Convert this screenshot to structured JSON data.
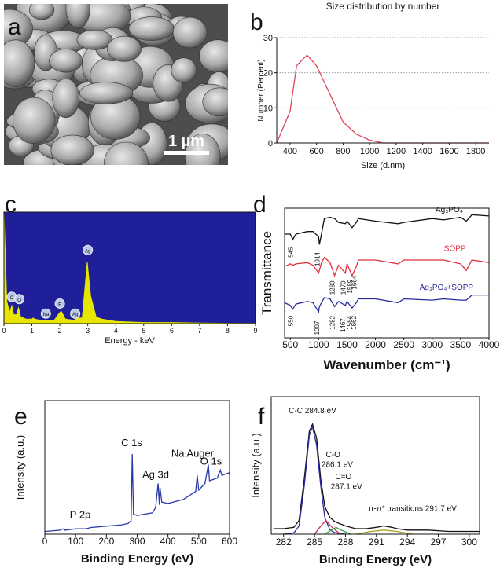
{
  "chart_data": [
    {
      "type": "image",
      "panel_label": "a",
      "scale_bar": "1 µm"
    },
    {
      "type": "line",
      "panel_label": "b",
      "title": "Size distribution by number",
      "xlabel": "Size (d.nm)",
      "ylabel": "Number (Percent)",
      "xlim": [
        300,
        1900
      ],
      "ylim": [
        0,
        30
      ],
      "xticks": [
        400,
        600,
        800,
        1000,
        1200,
        1400,
        1600,
        1800
      ],
      "yticks": [
        0,
        10,
        20,
        30
      ],
      "grid": true,
      "x": [
        300,
        400,
        450,
        500,
        530,
        600,
        700,
        800,
        900,
        1000,
        1100,
        1200,
        1400,
        1600,
        1800,
        1900
      ],
      "series": [
        {
          "color": "#e0455a",
          "values": [
            0,
            9,
            22,
            24,
            25,
            22,
            14,
            6,
            2.5,
            0.8,
            0,
            0,
            0,
            0,
            0,
            0
          ]
        }
      ]
    },
    {
      "type": "area",
      "panel_label": "c",
      "xlabel": "Energy - keV",
      "xlim": [
        0,
        9
      ],
      "ylim": [
        0,
        100
      ],
      "xticks": [
        0,
        1,
        2,
        3,
        4,
        5,
        6,
        7,
        8,
        9
      ],
      "plot_background": "#1f1f9a",
      "x": [
        0,
        0.1,
        0.2,
        0.28,
        0.35,
        0.45,
        0.52,
        0.6,
        0.8,
        1.0,
        1.04,
        1.1,
        1.3,
        1.5,
        1.6,
        1.8,
        2.0,
        2.05,
        2.2,
        2.5,
        2.65,
        2.8,
        2.98,
        3.1,
        3.15,
        3.3,
        3.5,
        4,
        5,
        6,
        7,
        8,
        9
      ],
      "series": [
        {
          "color": "#e6e600",
          "values": [
            100,
            20,
            10,
            16,
            8,
            8,
            14,
            6,
            4,
            4,
            5,
            4,
            3,
            3,
            3,
            3,
            10,
            11,
            4,
            3,
            5,
            5,
            55,
            25,
            20,
            6,
            4,
            2,
            1,
            1,
            0.5,
            0.3,
            0.2
          ]
        }
      ],
      "annotations": [
        "C",
        "O",
        "Na",
        "P",
        "Ag",
        "Ag"
      ]
    },
    {
      "type": "line",
      "panel_label": "d",
      "xlabel": "Wavenumber (cm⁻¹)",
      "ylabel": "Transmittance",
      "xlim": [
        400,
        4000
      ],
      "ylim": [
        0,
        100
      ],
      "xticks": [
        500,
        1000,
        1500,
        2000,
        2500,
        3000,
        3500,
        4000
      ],
      "x": [
        400,
        500,
        545,
        600,
        800,
        900,
        1000,
        1014,
        1050,
        1100,
        1200,
        1280,
        1350,
        1470,
        1500,
        1589,
        1664,
        1700,
        2000,
        2400,
        2500,
        3000,
        3200,
        3500,
        3600,
        3700,
        4000
      ],
      "series": [
        {
          "name": "Ag₃PO₄",
          "color": "#111111",
          "values": [
            80,
            80,
            76,
            80,
            82,
            82,
            78,
            72,
            80,
            92,
            93,
            92,
            89,
            88,
            90,
            85,
            89,
            92,
            90,
            88,
            89,
            92,
            91,
            93,
            90,
            95,
            94
          ]
        },
        {
          "name": "SOPP",
          "color": "#e0303c",
          "values": [
            55,
            57,
            56,
            57,
            58,
            56,
            50,
            52,
            58,
            62,
            58,
            48,
            56,
            50,
            57,
            48,
            55,
            60,
            60,
            57,
            60,
            60,
            60,
            57,
            52,
            60,
            58
          ]
        },
        {
          "name": "Ag₃PO₄+SOPP",
          "color": "#2a2aa0",
          "values": [
            27,
            25,
            22,
            26,
            28,
            27,
            20,
            24,
            27,
            31,
            30,
            24,
            28,
            25,
            28,
            23,
            27,
            30,
            30,
            27,
            30,
            29,
            30,
            29,
            29,
            33,
            33
          ]
        }
      ],
      "annotations": [
        "545",
        "1014",
        "1280",
        "1470",
        "1589",
        "1664",
        "550",
        "1007",
        "1282",
        "1467",
        "1584",
        "1662"
      ]
    },
    {
      "type": "line",
      "panel_label": "e",
      "xlabel": "Binding Energy (eV)",
      "ylabel": "Intensity (a.u.)",
      "xlim": [
        0,
        600
      ],
      "ylim": [
        0,
        100
      ],
      "xticks": [
        0,
        100,
        200,
        300,
        400,
        500,
        600
      ],
      "x": [
        0,
        50,
        60,
        65,
        100,
        133,
        150,
        200,
        250,
        270,
        280,
        284,
        288,
        300,
        350,
        360,
        368,
        372,
        374,
        380,
        400,
        450,
        490,
        495,
        500,
        520,
        531,
        535,
        560,
        570,
        575,
        600
      ],
      "series": [
        {
          "color": "#2a3aa8",
          "values": [
            2,
            3,
            4,
            3,
            4,
            4,
            5,
            6,
            7,
            8,
            10,
            60,
            15,
            14,
            16,
            20,
            38,
            22,
            35,
            24,
            23,
            26,
            32,
            44,
            33,
            38,
            52,
            40,
            42,
            48,
            44,
            46
          ]
        }
      ],
      "annotations": [
        "P 2p",
        "C 1s",
        "Ag 3d",
        "Na Auger",
        "O 1s"
      ]
    },
    {
      "type": "line",
      "panel_label": "f",
      "xlabel": "Binding Energy (eV)",
      "ylabel": "Intensity (a.u.)",
      "xlim": [
        280.8,
        301
      ],
      "ylim": [
        0,
        100
      ],
      "xticks": [
        282,
        285,
        288,
        291,
        294,
        297,
        300
      ],
      "series": [
        {
          "color": "#111111",
          "x": [
            281,
            282,
            283,
            283.5,
            284,
            284.5,
            284.8,
            285.2,
            285.6,
            286,
            286.5,
            287,
            288,
            289,
            290,
            291,
            291.7,
            292.5,
            293,
            294,
            296,
            298,
            300,
            301
          ],
          "values": [
            4,
            4,
            5,
            10,
            40,
            75,
            80,
            70,
            40,
            20,
            12,
            9,
            6,
            4,
            4,
            5,
            6,
            5,
            4,
            3,
            3,
            2,
            2,
            2
          ]
        },
        {
          "color": "#2a2aa0",
          "x": [
            282,
            283,
            283.5,
            284,
            284.5,
            284.8,
            285.2,
            285.6,
            286,
            286.5,
            287,
            288
          ],
          "values": [
            0,
            1,
            6,
            35,
            72,
            78,
            65,
            35,
            12,
            3,
            1,
            0
          ]
        },
        {
          "color": "#d03050",
          "x": [
            285,
            285.5,
            286.1,
            286.7,
            287.5
          ],
          "values": [
            0,
            5,
            10,
            5,
            0
          ]
        },
        {
          "color": "#30a040",
          "x": [
            286,
            286.6,
            287.1,
            287.6,
            288.5
          ],
          "values": [
            0,
            3,
            5,
            3,
            0
          ]
        },
        {
          "color": "#b0a020",
          "x": [
            289,
            290.5,
            291.7,
            293,
            294.5
          ],
          "values": [
            0,
            2,
            3,
            2,
            0
          ]
        }
      ],
      "annotations": [
        "C-C 284.8 eV",
        "C-O",
        "286.1 eV",
        "C=O",
        "287.1 eV",
        "π-π* transitions 291.7 eV"
      ]
    }
  ]
}
